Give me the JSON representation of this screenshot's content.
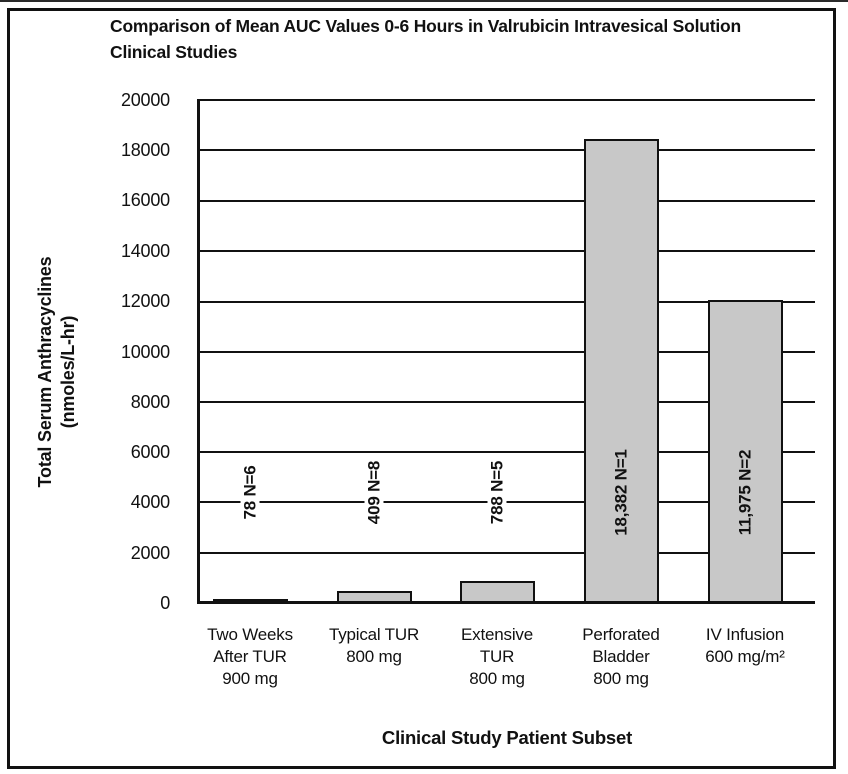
{
  "figure": {
    "title_line1": "Comparison of Mean AUC Values 0-6 Hours in Valrubicin Intravesical Solution",
    "title_line2": "Clinical Studies"
  },
  "chart_data": {
    "type": "bar",
    "title": "Comparison of Mean AUC Values 0-6 Hours in Valrubicin Intravesical Solution Clinical Studies",
    "xlabel": "Clinical Study Patient Subset",
    "ylabel": "Total Serum Anthracyclines (nmoles/L-hr)",
    "ylabel_line1": "Total Serum Anthracyclines",
    "ylabel_line2": "(nmoles/L-hr)",
    "ylim": [
      0,
      20000
    ],
    "ytick_interval": 2000,
    "yticks_top_to_bottom": [
      "20000",
      "18000",
      "16000",
      "14000",
      "12000",
      "10000",
      "8000",
      "6000",
      "4000",
      "2000",
      "0"
    ],
    "grid": "horizontal-only",
    "legend": "none",
    "bar_fill_color": "#c8c8c8",
    "bar_border_color": "#111111",
    "categories": [
      "Two Weeks After TUR 900 mg",
      "Typical TUR 800 mg",
      "Extensive TUR 800 mg",
      "Perforated Bladder 800 mg",
      "IV Infusion 600 mg/m²"
    ],
    "values": [
      78,
      409,
      788,
      18382,
      11975
    ],
    "bars": [
      {
        "category_lines": [
          "Two Weeks",
          "After TUR",
          "900 mg"
        ],
        "value": 78,
        "n": 6,
        "bar_label": "78 N=6"
      },
      {
        "category_lines": [
          "Typical TUR",
          "800 mg"
        ],
        "value": 409,
        "n": 8,
        "bar_label": "409 N=8"
      },
      {
        "category_lines": [
          "Extensive",
          "TUR",
          "800 mg"
        ],
        "value": 788,
        "n": 5,
        "bar_label": "788 N=5"
      },
      {
        "category_lines": [
          "Perforated",
          "Bladder",
          "800 mg"
        ],
        "value": 18382,
        "n": 1,
        "bar_label": "18,382 N=1"
      },
      {
        "category_lines": [
          "IV Infusion",
          "600 mg/m²"
        ],
        "value": 11975,
        "n": 2,
        "bar_label": "11,975 N=2"
      }
    ]
  }
}
